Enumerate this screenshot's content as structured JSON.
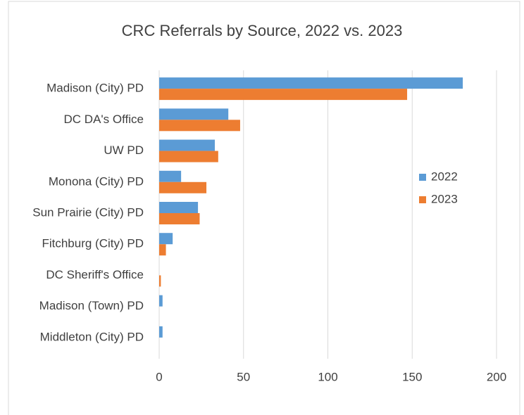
{
  "chart_data": {
    "type": "bar",
    "orientation": "horizontal",
    "title": "CRC Referrals by Source, 2022 vs. 2023",
    "categories": [
      "Madison (City) PD",
      "DC DA's Office",
      "UW PD",
      "Monona (City) PD",
      "Sun Prairie (City) PD",
      "Fitchburg (City) PD",
      "DC Sheriff's Office",
      "Madison (Town) PD",
      "Middleton (City) PD"
    ],
    "series": [
      {
        "name": "2022",
        "color": "#5b9bd5",
        "values": [
          180,
          41,
          33,
          13,
          23,
          8,
          0,
          2,
          2
        ]
      },
      {
        "name": "2023",
        "color": "#ed7d31",
        "values": [
          147,
          48,
          35,
          28,
          24,
          4,
          1,
          0,
          0
        ]
      }
    ],
    "xlim": [
      0,
      200
    ],
    "xticks": [
      0,
      50,
      100,
      150,
      200
    ],
    "grid": true,
    "legend": "right"
  }
}
